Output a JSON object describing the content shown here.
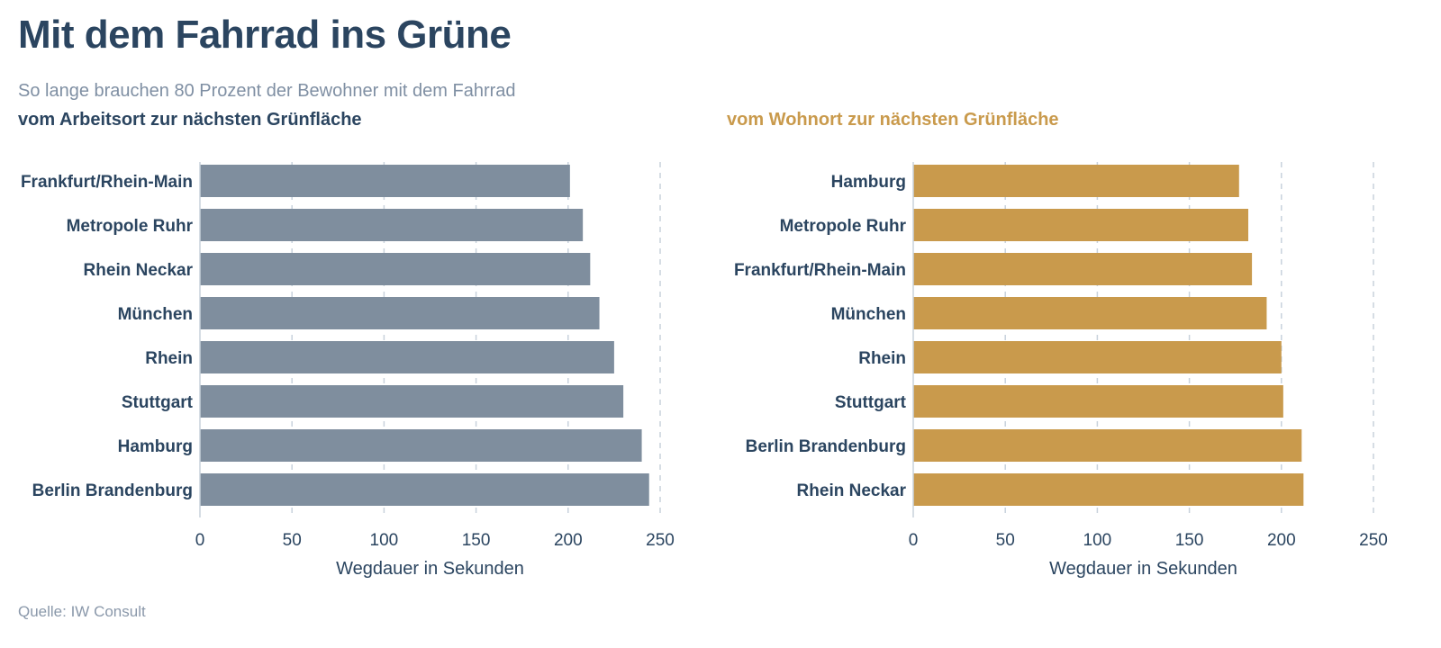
{
  "header": {
    "title": "Mit dem Fahrrad ins Grüne",
    "subtitle": "So lange brauchen 80 Prozent der Bewohner mit dem Fahrrad"
  },
  "footer": {
    "source": "Quelle: IW Consult"
  },
  "colors": {
    "left_bars": "#7f8e9e",
    "right_bars": "#c99a4c",
    "text": "#2b4560",
    "grid": "#c8d2dc"
  },
  "chart_data": [
    {
      "type": "bar",
      "orientation": "horizontal",
      "title": "vom Arbeitsort zur nächsten Grünfläche",
      "categories": [
        "Frankfurt/Rhein-Main",
        "Metropole Ruhr",
        "Rhein Neckar",
        "München",
        "Rhein",
        "Stuttgart",
        "Hamburg",
        "Berlin Brandenburg"
      ],
      "values": [
        201,
        208,
        212,
        217,
        225,
        230,
        240,
        244
      ],
      "xlabel": "Wegdauer in Sekunden",
      "ylabel": "",
      "xlim": [
        0,
        250
      ],
      "ticks": [
        0,
        50,
        100,
        150,
        200,
        250
      ],
      "grid": true
    },
    {
      "type": "bar",
      "orientation": "horizontal",
      "title": "vom Wohnort zur nächsten Grünfläche",
      "categories": [
        "Hamburg",
        "Metropole Ruhr",
        "Frankfurt/Rhein-Main",
        "München",
        "Rhein",
        "Stuttgart",
        "Berlin Brandenburg",
        "Rhein Neckar"
      ],
      "values": [
        177,
        182,
        184,
        192,
        200,
        201,
        211,
        212
      ],
      "xlabel": "Wegdauer in Sekunden",
      "ylabel": "",
      "xlim": [
        0,
        250
      ],
      "ticks": [
        0,
        50,
        100,
        150,
        200,
        250
      ],
      "grid": true
    }
  ]
}
